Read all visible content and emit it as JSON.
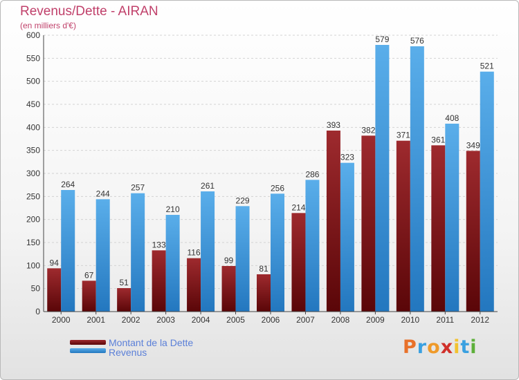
{
  "header": {
    "title": "Revenus/Dette - AIRAN",
    "subtitle": "(en milliers d'€)"
  },
  "chart_data": {
    "type": "bar",
    "categories": [
      "2000",
      "2001",
      "2002",
      "2003",
      "2004",
      "2005",
      "2006",
      "2007",
      "2008",
      "2009",
      "2010",
      "2011",
      "2012"
    ],
    "series": [
      {
        "name": "Montant de la Dette",
        "color": "#7a1518",
        "values": [
          94,
          67,
          51,
          133,
          116,
          99,
          81,
          214,
          393,
          382,
          371,
          361,
          349
        ]
      },
      {
        "name": "Revenus",
        "color": "#3a95dc",
        "values": [
          264,
          244,
          257,
          210,
          261,
          229,
          256,
          286,
          323,
          579,
          576,
          408,
          521
        ]
      }
    ],
    "ylim": [
      0,
      600
    ],
    "yticks": [
      0,
      50,
      100,
      150,
      200,
      250,
      300,
      350,
      400,
      450,
      500,
      550,
      600
    ],
    "grid": true,
    "legend": "bottom-left"
  },
  "logo": {
    "letters": [
      "P",
      "r",
      "o",
      "x",
      "i",
      "t",
      "i"
    ],
    "colors": [
      "#e8712a",
      "#3aa0e0",
      "#ef9a2a",
      "#d0302a",
      "#f2c230",
      "#3aa0e0",
      "#5db03a"
    ]
  }
}
